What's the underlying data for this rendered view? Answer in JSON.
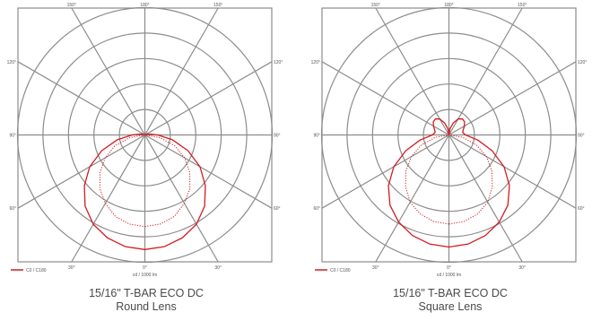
{
  "chart_data": [
    {
      "type": "polar",
      "title": "15/16\" T-BAR ECO DC",
      "subtitle": "Round Lens",
      "xlabel": "cd / 1000 lm",
      "angle_tick_labels": [
        "180°",
        "150°",
        "150°",
        "120°",
        "120°",
        "90°",
        "90°",
        "60°",
        "60°",
        "30°",
        "30°",
        "0°"
      ],
      "radial_rings": 5,
      "spokes_every_deg": 30,
      "legend": {
        "position": "bottom-left",
        "entries": [
          "C0 / C180"
        ]
      },
      "series": [
        {
          "name": "C0 / C180",
          "style": "solid",
          "color": "#d41a1f",
          "angles_deg": [
            0,
            10,
            20,
            30,
            40,
            50,
            60,
            70,
            80,
            90,
            100,
            110,
            120
          ],
          "values": [
            0.9,
            0.89,
            0.86,
            0.81,
            0.73,
            0.62,
            0.5,
            0.36,
            0.22,
            0.1,
            0.04,
            0.015,
            0.0
          ]
        },
        {
          "style": "dotted",
          "color": "#d41a1f",
          "angles_deg": [
            0,
            10,
            20,
            30,
            40,
            50,
            60,
            70,
            80,
            90
          ],
          "values": [
            0.72,
            0.71,
            0.68,
            0.62,
            0.55,
            0.46,
            0.36,
            0.25,
            0.12,
            0.0
          ]
        }
      ]
    },
    {
      "type": "polar",
      "title": "15/16\" T-BAR ECO DC",
      "subtitle": "Square Lens",
      "xlabel": "cd / 1000 lm",
      "angle_tick_labels": [
        "180°",
        "150°",
        "150°",
        "120°",
        "120°",
        "90°",
        "90°",
        "60°",
        "60°",
        "30°",
        "30°",
        "0°"
      ],
      "radial_rings": 5,
      "spokes_every_deg": 30,
      "legend": {
        "position": "bottom-left",
        "entries": [
          "C0 / C180"
        ]
      },
      "series": [
        {
          "name": "C0 / C180",
          "style": "solid",
          "color": "#d41a1f",
          "angles_deg": [
            0,
            10,
            20,
            30,
            40,
            50,
            60,
            70,
            80,
            90,
            100,
            110,
            120,
            130,
            140,
            150,
            160,
            170,
            180
          ],
          "values": [
            0.88,
            0.87,
            0.84,
            0.79,
            0.72,
            0.62,
            0.5,
            0.36,
            0.23,
            0.13,
            0.11,
            0.12,
            0.14,
            0.16,
            0.165,
            0.145,
            0.1,
            0.05,
            0.0
          ]
        },
        {
          "style": "dotted",
          "color": "#d41a1f",
          "angles_deg": [
            0,
            10,
            20,
            30,
            40,
            50,
            60,
            70,
            80,
            90
          ],
          "values": [
            0.7,
            0.69,
            0.66,
            0.61,
            0.53,
            0.44,
            0.34,
            0.23,
            0.11,
            0.0
          ]
        }
      ]
    }
  ]
}
